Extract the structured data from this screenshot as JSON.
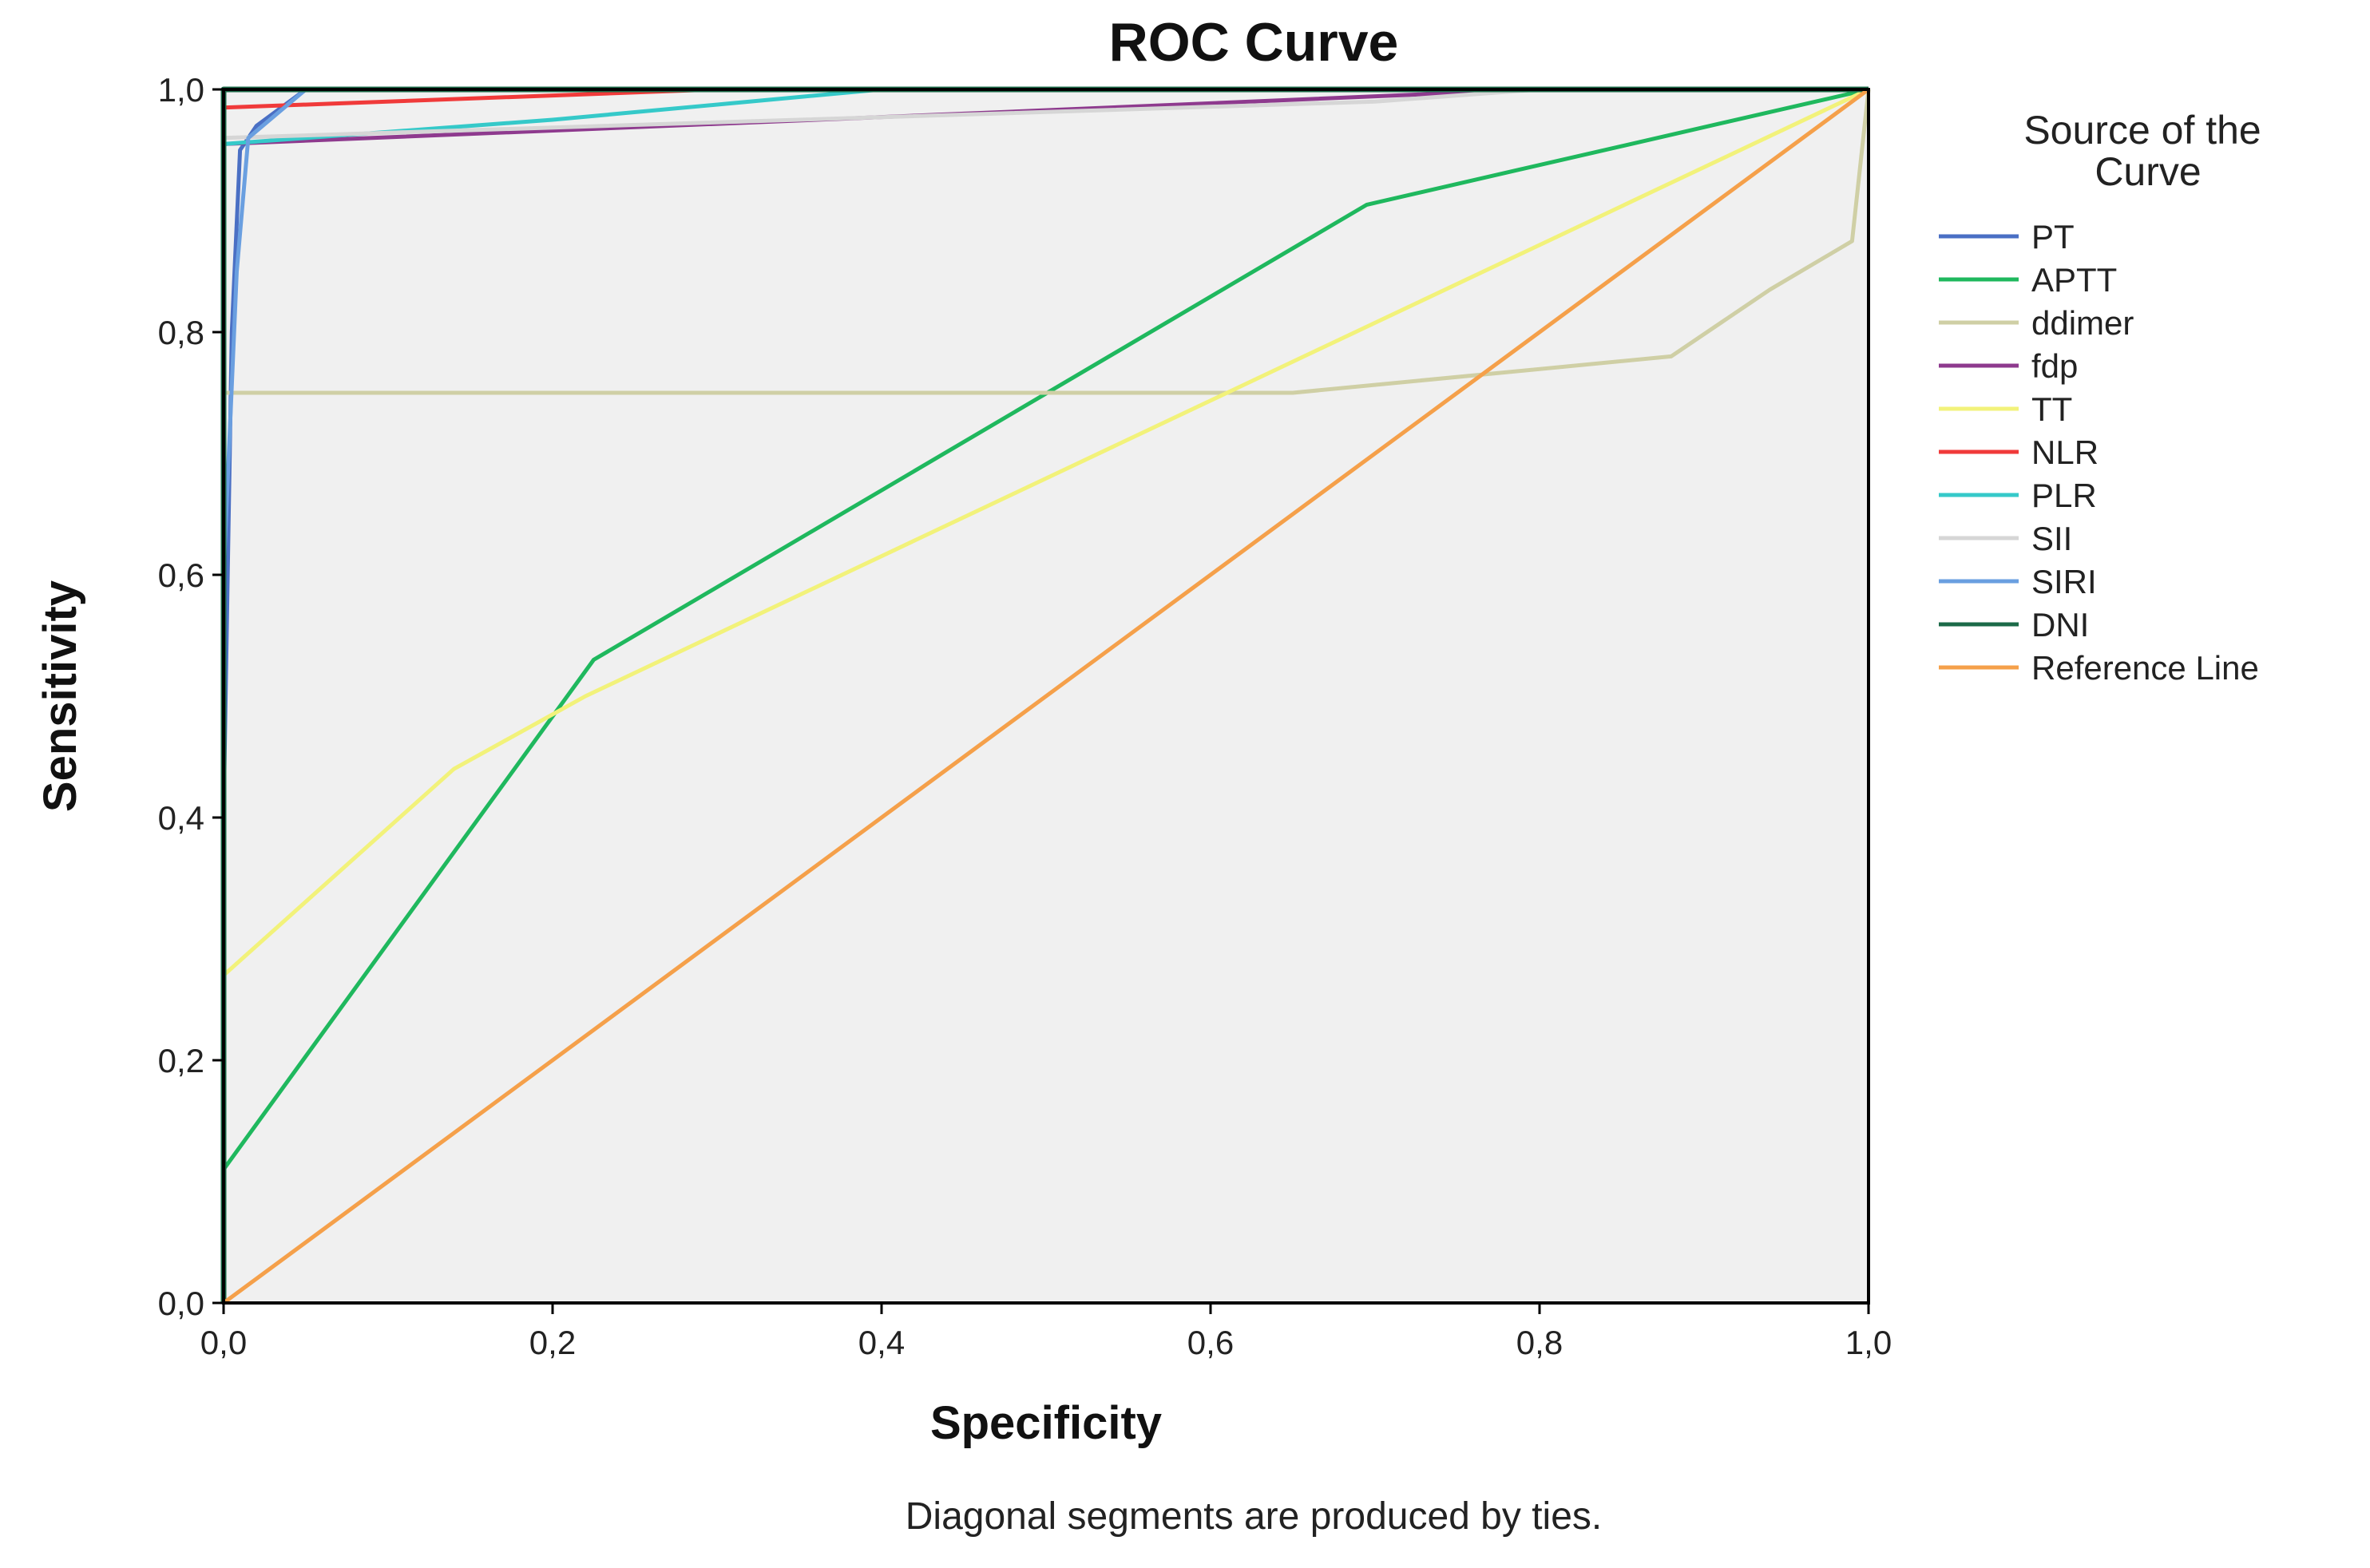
{
  "chart_data": {
    "type": "line",
    "title": "ROC Curve",
    "xlabel": "Specificity",
    "ylabel": "Sensitivity",
    "xlim": [
      0,
      1
    ],
    "ylim": [
      0,
      1
    ],
    "x_ticks": [
      "0,0",
      "0,2",
      "0,4",
      "0,6",
      "0,8",
      "1,0"
    ],
    "y_ticks": [
      "0,0",
      "0,2",
      "0,4",
      "0,6",
      "0,8",
      "1,0"
    ],
    "x_tick_values": [
      0,
      0.2,
      0.4,
      0.6,
      0.8,
      1.0
    ],
    "y_tick_values": [
      0,
      0.2,
      0.4,
      0.6,
      0.8,
      1.0
    ],
    "grid": false,
    "legend_title": "Source of the Curve",
    "legend_position": "right",
    "footnote": "Diagonal segments are produced by ties.",
    "series": [
      {
        "name": "PT",
        "color": "#4a6fc4",
        "points": [
          [
            0,
            0
          ],
          [
            0,
            0.4
          ],
          [
            0.005,
            0.8
          ],
          [
            0.01,
            0.95
          ],
          [
            0.02,
            0.97
          ],
          [
            0.05,
            1.0
          ],
          [
            1,
            1
          ]
        ]
      },
      {
        "name": "APTT",
        "color": "#1fb85e",
        "points": [
          [
            0,
            0.11
          ],
          [
            0.225,
            0.53
          ],
          [
            0.695,
            0.905
          ],
          [
            1,
            1
          ]
        ]
      },
      {
        "name": "ddimer",
        "color": "#cfcfa5",
        "points": [
          [
            0,
            0.75
          ],
          [
            0.65,
            0.75
          ],
          [
            0.88,
            0.78
          ],
          [
            0.94,
            0.835
          ],
          [
            0.99,
            0.875
          ],
          [
            1,
            1
          ]
        ]
      },
      {
        "name": "fdp",
        "color": "#8e3a8e",
        "points": [
          [
            0,
            0.955
          ],
          [
            0.45,
            0.98
          ],
          [
            0.8,
            1.0
          ],
          [
            1,
            1
          ]
        ]
      },
      {
        "name": "TT",
        "color": "#f2f27a",
        "points": [
          [
            0,
            0.27
          ],
          [
            0.14,
            0.44
          ],
          [
            0.22,
            0.5
          ],
          [
            1,
            1
          ]
        ]
      },
      {
        "name": "NLR",
        "color": "#f03a3a",
        "points": [
          [
            0,
            0
          ],
          [
            0,
            0.985
          ],
          [
            0.3,
            1.0
          ],
          [
            1,
            1
          ]
        ]
      },
      {
        "name": "PLR",
        "color": "#35c9c9",
        "points": [
          [
            0,
            0.955
          ],
          [
            0.2,
            0.975
          ],
          [
            0.4,
            1.0
          ],
          [
            1,
            1
          ]
        ]
      },
      {
        "name": "SII",
        "color": "#d6d6d6",
        "points": [
          [
            0,
            0.96
          ],
          [
            0.7,
            0.99
          ],
          [
            0.8,
            1.0
          ],
          [
            1,
            1
          ]
        ]
      },
      {
        "name": "SIRI",
        "color": "#6a9fe0",
        "points": [
          [
            0,
            0
          ],
          [
            0,
            0.6
          ],
          [
            0.008,
            0.85
          ],
          [
            0.015,
            0.96
          ],
          [
            0.05,
            1.0
          ],
          [
            1,
            1
          ]
        ]
      },
      {
        "name": "DNI",
        "color": "#1b6a48",
        "points": [
          [
            0,
            0
          ],
          [
            0,
            1
          ],
          [
            1,
            1
          ]
        ]
      },
      {
        "name": "Reference Line",
        "color": "#f5a04a",
        "points": [
          [
            0,
            0
          ],
          [
            1,
            1
          ]
        ]
      }
    ]
  }
}
